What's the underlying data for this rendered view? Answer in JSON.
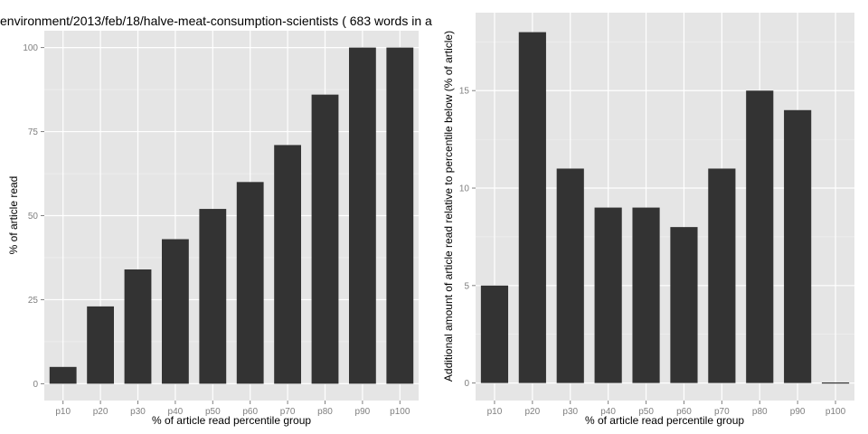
{
  "chart_data": [
    {
      "type": "bar",
      "title": "environment/2013/feb/18/halve-meat-consumption-scientists ( 683 words in a",
      "xlabel": "% of article read percentile group",
      "ylabel": "% of article read",
      "categories": [
        "p10",
        "p20",
        "p30",
        "p40",
        "p50",
        "p60",
        "p70",
        "p80",
        "p90",
        "p100"
      ],
      "values": [
        5,
        23,
        34,
        43,
        52,
        60,
        71,
        86,
        100,
        100
      ],
      "ylim": [
        -5,
        105
      ],
      "yticks": [
        0,
        25,
        50,
        75,
        100
      ],
      "ytick_labels": [
        "0",
        "25",
        "50",
        "75",
        "100"
      ],
      "grid": true,
      "bar_color": "#333333",
      "panel_color": "#e5e5e5"
    },
    {
      "type": "bar",
      "title": "",
      "xlabel": "% of article read percentile group",
      "ylabel": "Additional amount of article read relative to percentile below (% of article)",
      "categories": [
        "p10",
        "p20",
        "p30",
        "p40",
        "p50",
        "p60",
        "p70",
        "p80",
        "p90",
        "p100"
      ],
      "values": [
        5,
        18,
        11,
        9,
        9,
        8,
        11,
        15,
        14,
        0
      ],
      "ylim": [
        -0.9,
        19.0
      ],
      "yticks": [
        0,
        5,
        10,
        15
      ],
      "ytick_labels": [
        "0",
        "5",
        "10",
        "15"
      ],
      "grid": true,
      "bar_color": "#333333",
      "panel_color": "#e5e5e5"
    }
  ]
}
